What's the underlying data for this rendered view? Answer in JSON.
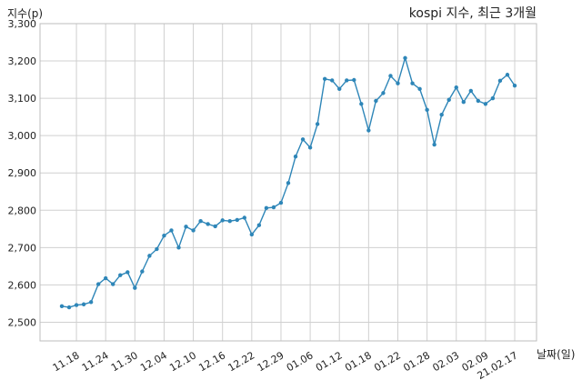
{
  "chart_data": {
    "type": "line",
    "title": "kospi 지수, 최근 3개월",
    "xlabel": "날짜(일)",
    "ylabel": "지수(p)",
    "ylim": [
      2450,
      3300
    ],
    "yticks": [
      2500,
      2600,
      2700,
      2800,
      2900,
      3000,
      3100,
      3200,
      3300
    ],
    "ytick_labels": [
      "2,500",
      "2,600",
      "2,700",
      "2,800",
      "2,900",
      "3,000",
      "3,100",
      "3,200",
      "3,300"
    ],
    "xticks": [
      {
        "index": 2,
        "label": "11.18"
      },
      {
        "index": 6,
        "label": "11.24"
      },
      {
        "index": 10,
        "label": "11.30"
      },
      {
        "index": 14,
        "label": "12.04"
      },
      {
        "index": 18,
        "label": "12.10"
      },
      {
        "index": 22,
        "label": "12.16"
      },
      {
        "index": 26,
        "label": "12.22"
      },
      {
        "index": 30,
        "label": "12.29"
      },
      {
        "index": 34,
        "label": "01.06"
      },
      {
        "index": 38,
        "label": "01.12"
      },
      {
        "index": 42,
        "label": "01.18"
      },
      {
        "index": 46,
        "label": "01.22"
      },
      {
        "index": 50,
        "label": "01.28"
      },
      {
        "index": 54,
        "label": "02.03"
      },
      {
        "index": 58,
        "label": "02.09"
      },
      {
        "index": 62,
        "label": "21.02.17"
      }
    ],
    "grid": true,
    "color": "#2e86b8",
    "values": [
      2543,
      2540,
      2546,
      2548,
      2554,
      2602,
      2618,
      2602,
      2626,
      2634,
      2592,
      2636,
      2678,
      2696,
      2732,
      2746,
      2700,
      2756,
      2746,
      2771,
      2763,
      2757,
      2773,
      2771,
      2774,
      2780,
      2735,
      2760,
      2806,
      2808,
      2820,
      2873,
      2944,
      2990,
      2968,
      3031,
      3152,
      3148,
      3125,
      3148,
      3149,
      3085,
      3014,
      3093,
      3114,
      3160,
      3140,
      3208,
      3140,
      3125,
      3069,
      2976,
      3056,
      3096,
      3129,
      3090,
      3120,
      3093,
      3085,
      3100,
      3147,
      3163,
      3134
    ]
  }
}
